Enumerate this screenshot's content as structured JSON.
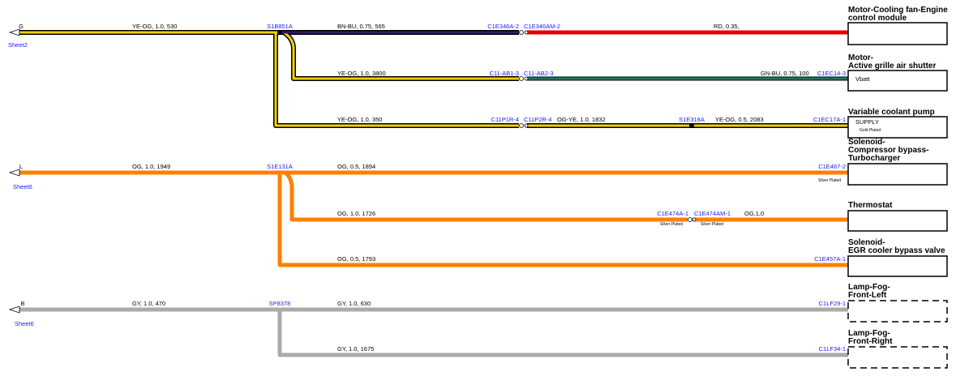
{
  "sheet_refs": [
    {
      "letter": "G",
      "sheet": "Sheet2"
    },
    {
      "letter": "L",
      "sheet": "Sheet6"
    },
    {
      "letter": "B",
      "sheet": "Sheet6"
    }
  ],
  "splices": [
    "S1B851A",
    "S1E318A",
    "S1E131A",
    "SP8378"
  ],
  "wires": [
    "YE-OG, 1.0, 530",
    "BN-BU, 0.75, 565",
    "RD, 0.35,",
    "YE-OG, 1.0, 3800",
    "GN-BU, 0.75, 100",
    "YE-OG, 1.0, 350",
    "OG-YE, 1.0, 1832",
    "YE-OG, 0.5, 2083",
    "OG, 1.0, 1949",
    "OG, 0.5, 1894",
    "OG, 1.0, 1726",
    "OG,1,0",
    "OG, 0.5, 1793",
    "GY, 1.0, 470",
    "GY, 1.0, 630",
    "GY, 1.0, 1675"
  ],
  "connectors": [
    "C1E346A-2",
    "C1E346AM-2",
    "C11-AB1-3",
    "C11-AB2-3",
    "C1EC14-3",
    "C11P1R-4",
    "C11P2R-4",
    "C1EC17A-1",
    "C1E467-2",
    "C1E474A-1",
    "C1E474AM-1",
    "C1E457A-1",
    "C1LF29-1",
    "C1LF34-1"
  ],
  "plating": {
    "gold": "Gold Plated",
    "silver": "Silver Plated"
  },
  "modules": [
    {
      "lines": [
        "Motor-Cooling fan-Engine",
        "control module"
      ]
    },
    {
      "lines": [
        "Motor-",
        "Active grille air shutter"
      ],
      "pin": "Vbatt"
    },
    {
      "lines": [
        "Variable coolant pump"
      ],
      "pin": "SUPPLY"
    },
    {
      "lines": [
        "Solenoid-",
        "Compressor bypass-",
        "Turbocharger"
      ]
    },
    {
      "lines": [
        "Thermostat"
      ]
    },
    {
      "lines": [
        "Solenoid-",
        "EGR cooler bypass valve"
      ]
    },
    {
      "lines": [
        "Lamp-Fog-",
        "Front-Left"
      ]
    },
    {
      "lines": [
        "Lamp-Fog-",
        "Front-Right"
      ]
    }
  ]
}
